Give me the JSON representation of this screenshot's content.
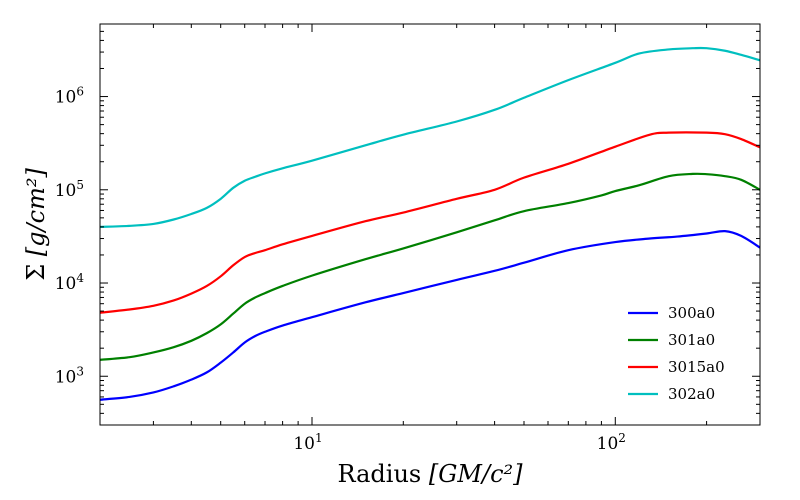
{
  "chart_data": {
    "type": "line",
    "xscale": "log",
    "yscale": "log",
    "xlabel": "Radius",
    "xlabel_units": "[GM/c²]",
    "ylabel": "Σ",
    "ylabel_units": "[g/cm²]",
    "xlim": [
      2,
      300
    ],
    "ylim": [
      300,
      6000000
    ],
    "x_ticks": [
      {
        "value": 10,
        "label": "10",
        "exp": "1"
      },
      {
        "value": 100,
        "label": "10",
        "exp": "2"
      }
    ],
    "y_ticks": [
      {
        "value": 1000,
        "label": "10",
        "exp": "3"
      },
      {
        "value": 10000,
        "label": "10",
        "exp": "4"
      },
      {
        "value": 100000,
        "label": "10",
        "exp": "5"
      },
      {
        "value": 1000000,
        "label": "10",
        "exp": "6"
      }
    ],
    "legend_position": "bottom-right",
    "series": [
      {
        "name": "300a0",
        "color": "#0000ff",
        "x": [
          2,
          2.5,
          3,
          3.5,
          4,
          4.5,
          5,
          5.5,
          6,
          6.5,
          7,
          8,
          10,
          15,
          20,
          30,
          40,
          50,
          70,
          100,
          130,
          160,
          200,
          230,
          260,
          300
        ],
        "y": [
          560,
          600,
          670,
          780,
          920,
          1100,
          1400,
          1800,
          2300,
          2700,
          3000,
          3500,
          4300,
          6200,
          7800,
          10800,
          13500,
          16500,
          22500,
          27500,
          30000,
          31500,
          34000,
          36000,
          32000,
          24000
        ]
      },
      {
        "name": "301a0",
        "color": "#008000",
        "x": [
          2,
          2.5,
          3,
          3.5,
          4,
          4.5,
          5,
          5.5,
          6,
          6.5,
          7,
          8,
          10,
          15,
          20,
          30,
          40,
          50,
          70,
          90,
          100,
          120,
          150,
          180,
          200,
          230,
          260,
          300
        ],
        "y": [
          1500,
          1600,
          1800,
          2050,
          2400,
          2900,
          3600,
          4700,
          6000,
          7000,
          7800,
          9300,
          12000,
          18000,
          23500,
          35000,
          47000,
          59000,
          72000,
          87000,
          97000,
          112000,
          140000,
          148000,
          147000,
          140000,
          128000,
          100000
        ]
      },
      {
        "name": "3015a0",
        "color": "#ff0000",
        "x": [
          2,
          2.5,
          3,
          3.5,
          4,
          4.5,
          5,
          5.5,
          6,
          6.5,
          7,
          8,
          10,
          15,
          20,
          30,
          40,
          50,
          70,
          100,
          130,
          150,
          200,
          230,
          260,
          300
        ],
        "y": [
          4800,
          5200,
          5700,
          6500,
          7700,
          9300,
          11800,
          15500,
          19000,
          21000,
          22500,
          26000,
          32000,
          46000,
          57000,
          80000,
          100000,
          135000,
          190000,
          290000,
          390000,
          410000,
          410000,
          395000,
          350000,
          285000
        ]
      },
      {
        "name": "302a0",
        "color": "#00bfbf",
        "x": [
          2,
          2.5,
          3,
          3.5,
          4,
          4.5,
          5,
          5.5,
          6,
          6.5,
          7,
          8,
          10,
          15,
          20,
          30,
          40,
          50,
          70,
          100,
          120,
          150,
          180,
          200,
          230,
          260,
          300
        ],
        "y": [
          40000,
          41000,
          43000,
          48000,
          55000,
          64000,
          80000,
          105000,
          125000,
          138000,
          150000,
          170000,
          205000,
          300000,
          390000,
          540000,
          720000,
          970000,
          1500000,
          2300000,
          2900000,
          3200000,
          3300000,
          3300000,
          3100000,
          2800000,
          2450000
        ]
      }
    ]
  }
}
